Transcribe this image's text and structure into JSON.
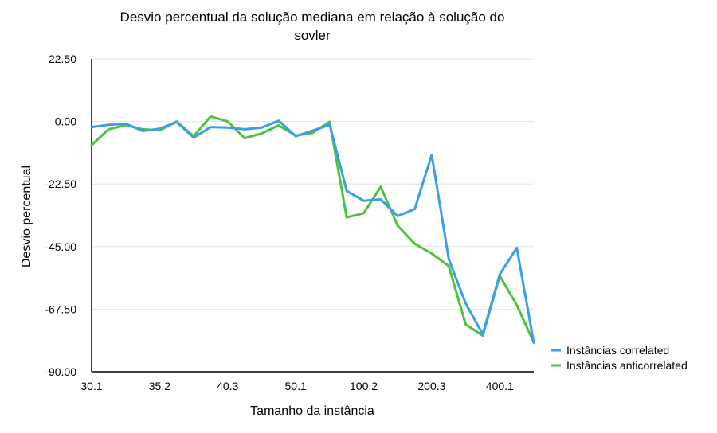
{
  "chart_data": {
    "type": "line",
    "title_line1": "Desvio percentual da solução mediana em relação à solução do",
    "title_line2": "sovler",
    "xlabel": "Tamanho da instância",
    "ylabel": "Desvio percentual",
    "ylim": [
      -90,
      22.5
    ],
    "yticks": [
      "22.50",
      "0.00",
      "-22.50",
      "-45.00",
      "-67.50",
      "-90.00"
    ],
    "ytick_values": [
      22.5,
      0,
      -22.5,
      -45,
      -67.5,
      -90
    ],
    "xticks": [
      "30.1",
      "35.2",
      "40.3",
      "50.1",
      "100.2",
      "200.3",
      "400.1"
    ],
    "xtick_indices": [
      0,
      4,
      8,
      12,
      16,
      20,
      24
    ],
    "point_count": 27,
    "grid": true,
    "legend_position": "right",
    "series": [
      {
        "name": "Instâncias correlated",
        "color": "#3a9fe6",
        "values": [
          -2,
          -1.2,
          -0.8,
          -3.4,
          -2.6,
          -0.2,
          -5.8,
          -2,
          -2.2,
          -2.8,
          -2.2,
          0.3,
          -5.3,
          -3.3,
          -1.2,
          -25,
          -28.5,
          -28,
          -34,
          -31.5,
          -12,
          -49.5,
          -65.5,
          -76.5,
          -55,
          -45.5,
          -79.5
        ]
      },
      {
        "name": "Instâncias anticorrelated",
        "color": "#4dc33b",
        "values": [
          -8.5,
          -2.8,
          -1.3,
          -2.8,
          -3.2,
          0,
          -5.3,
          1.8,
          0,
          -6,
          -4.3,
          -1.4,
          -5.1,
          -4.1,
          -0.1,
          -34.5,
          -33,
          -23.5,
          -37.5,
          -44,
          -47.5,
          -52,
          -73,
          -77,
          -55.5,
          -66,
          -79.5
        ]
      }
    ]
  }
}
